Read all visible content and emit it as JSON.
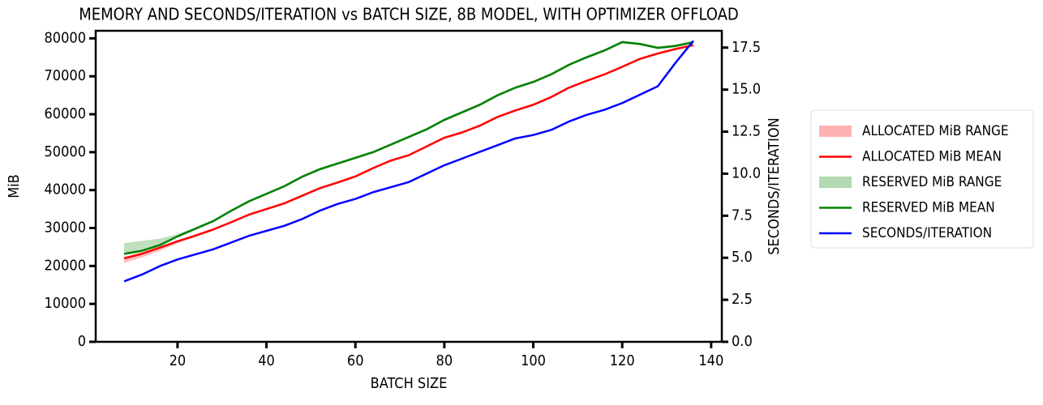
{
  "chart_data": {
    "type": "line",
    "title": "MEMORY AND SECONDS/ITERATION vs BATCH SIZE, 8B MODEL, WITH OPTIMIZER OFFLOAD",
    "x_label": "BATCH SIZE",
    "y_label": "MiB",
    "y2_label": "SECONDS/ITERATION",
    "x": [
      8,
      12,
      16,
      20,
      24,
      28,
      32,
      36,
      40,
      44,
      48,
      52,
      56,
      60,
      64,
      68,
      72,
      76,
      80,
      84,
      88,
      92,
      96,
      100,
      104,
      108,
      112,
      116,
      120,
      124,
      128,
      132,
      136
    ],
    "xlim": [
      1.6,
      142.4
    ],
    "xticks": [
      20,
      40,
      60,
      80,
      100,
      120,
      140
    ],
    "ylim": [
      0,
      82000
    ],
    "yticks": [
      0,
      10000,
      20000,
      30000,
      40000,
      50000,
      60000,
      70000,
      80000
    ],
    "y2lim": [
      0,
      18.5
    ],
    "y2ticks": [
      {
        "value": 0,
        "label": "0.0"
      },
      2.5,
      {
        "value": 5,
        "label": "5.0"
      },
      7.5,
      {
        "value": 10,
        "label": "10.0"
      },
      12.5,
      {
        "value": 15,
        "label": "15.0"
      },
      17.5
    ],
    "series": [
      {
        "name": "ALLOCATED MiB RANGE",
        "color": "#ff0000",
        "kind": "band",
        "lower": [
          20800,
          22200,
          24000,
          26000,
          27600,
          29300,
          31200,
          33200,
          34700,
          36200,
          38200,
          40200,
          41700,
          43300,
          45500,
          47500,
          48900,
          51200,
          53500,
          54900,
          56700,
          59000,
          60700,
          62200,
          64200,
          66700,
          68500,
          70200,
          72200,
          74300,
          75700,
          76900,
          77900
        ],
        "upper": [
          22400,
          23600,
          25200,
          26800,
          28300,
          29900,
          31800,
          33800,
          35300,
          36800,
          38800,
          40800,
          42300,
          43900,
          46100,
          48100,
          49500,
          51800,
          54100,
          55500,
          57300,
          59600,
          61300,
          62800,
          64800,
          67300,
          69100,
          70800,
          72800,
          74900,
          76300,
          77500,
          78500
        ]
      },
      {
        "name": "ALLOCATED MiB MEAN",
        "color": "#ff0000",
        "values": [
          22000,
          23200,
          24800,
          26500,
          28000,
          29600,
          31500,
          33500,
          35000,
          36500,
          38500,
          40500,
          42000,
          43600,
          45800,
          47800,
          49200,
          51500,
          53800,
          55200,
          57000,
          59300,
          61000,
          62500,
          64500,
          67000,
          68800,
          70500,
          72500,
          74600,
          76000,
          77200,
          78200
        ]
      },
      {
        "name": "RESERVED MiB RANGE",
        "color": "#008000",
        "kind": "band",
        "lower": [
          22900,
          23700,
          25200,
          27500,
          29500,
          31500,
          34200,
          36700,
          38700,
          40700,
          43200,
          45200,
          46700,
          48200,
          49700,
          51700,
          53700,
          55700,
          58200,
          60200,
          62200,
          64700,
          66700,
          68200,
          70200,
          72700,
          74700,
          76500,
          78700,
          78200,
          77200,
          77700,
          78700
        ],
        "upper": [
          26000,
          26600,
          27200,
          28400,
          30200,
          32200,
          34900,
          37400,
          39400,
          41400,
          43900,
          45900,
          47400,
          48900,
          50400,
          52400,
          54400,
          56400,
          58900,
          60900,
          62900,
          65400,
          67400,
          68900,
          70900,
          73400,
          75400,
          77200,
          79400,
          78900,
          77900,
          78400,
          79400
        ]
      },
      {
        "name": "RESERVED MiB MEAN",
        "color": "#008000",
        "values": [
          23200,
          24000,
          25500,
          27800,
          29800,
          31800,
          34500,
          37000,
          39000,
          41000,
          43500,
          45500,
          47000,
          48500,
          50000,
          52000,
          54000,
          56000,
          58500,
          60500,
          62500,
          65000,
          67000,
          68500,
          70500,
          73000,
          75000,
          76800,
          79000,
          78500,
          77500,
          78000,
          79000
        ]
      },
      {
        "name": "SECONDS/ITERATION",
        "color": "#0000ff",
        "axis": "y2",
        "values": [
          3.6,
          4.0,
          4.5,
          4.9,
          5.2,
          5.5,
          5.9,
          6.3,
          6.6,
          6.9,
          7.3,
          7.8,
          8.2,
          8.5,
          8.9,
          9.2,
          9.5,
          10.0,
          10.5,
          10.9,
          11.3,
          11.7,
          12.1,
          12.3,
          12.6,
          13.1,
          13.5,
          13.8,
          14.2,
          14.7,
          15.2,
          16.6,
          17.9
        ]
      }
    ]
  }
}
